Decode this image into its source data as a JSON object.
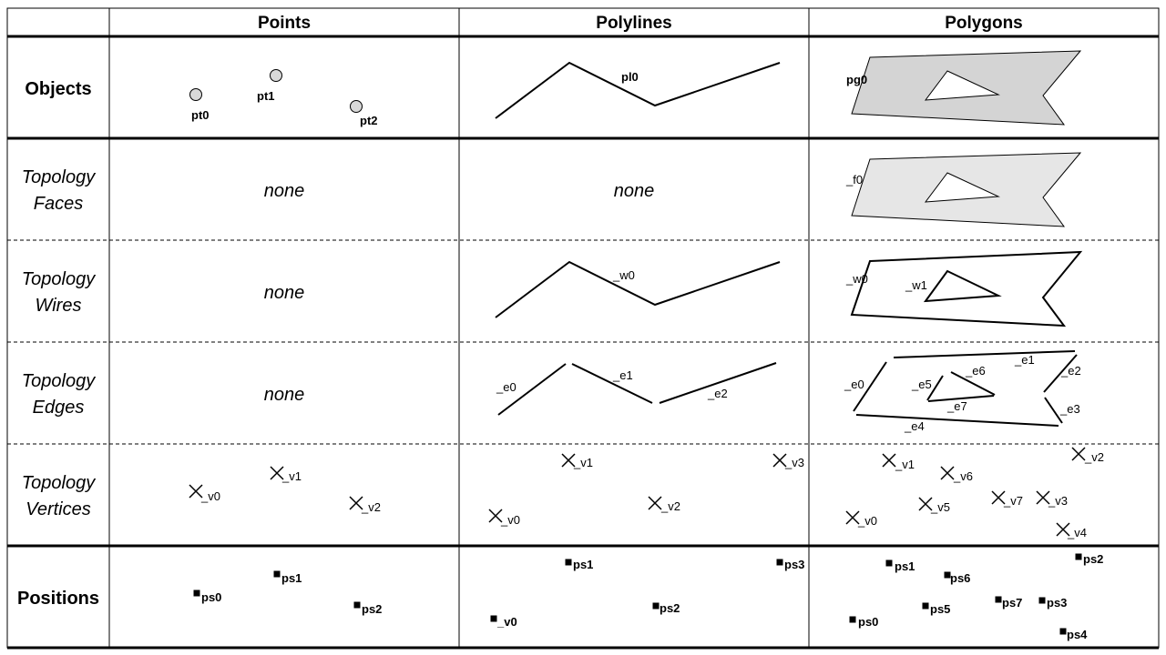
{
  "headers": {
    "points": "Points",
    "polylines": "Polylines",
    "polygons": "Polygons"
  },
  "rows": {
    "objects": "Objects",
    "faces": [
      "Topology",
      "Faces"
    ],
    "wires": [
      "Topology",
      "Wires"
    ],
    "edges": [
      "Topology",
      "Edges"
    ],
    "vertices": [
      "Topology",
      "Vertices"
    ],
    "positions": "Positions"
  },
  "none_label": "none",
  "objects": {
    "points": [
      "pt0",
      "pt1",
      "pt2"
    ],
    "polyline": "pl0",
    "polygon": "pg0"
  },
  "faces": {
    "polygon": "_f0"
  },
  "wires": {
    "polyline": "_w0",
    "polygon": [
      "_w0",
      "_w1"
    ]
  },
  "edges": {
    "polyline": [
      "_e0",
      "_e1",
      "_e2"
    ],
    "polygon": [
      "_e0",
      "_e1",
      "_e2",
      "_e3",
      "_e4",
      "_e5",
      "_e6",
      "_e7"
    ]
  },
  "vertices": {
    "points": [
      "_v0",
      "_v1",
      "_v2"
    ],
    "polyline": [
      "_v0",
      "_v1",
      "_v2",
      "_v3"
    ],
    "polygon": [
      "_v0",
      "_v1",
      "_v2",
      "_v3",
      "_v4",
      "_v5",
      "_v6",
      "_v7"
    ]
  },
  "positions": {
    "points": [
      "ps0",
      "ps1",
      "ps2"
    ],
    "polyline": [
      "_v0",
      "ps1",
      "ps2",
      "ps3"
    ],
    "polygon": [
      "ps0",
      "ps1",
      "ps2",
      "ps3",
      "ps4",
      "ps5",
      "ps6",
      "ps7"
    ]
  },
  "colors": {
    "object_fill": "#d4d4d4",
    "face_fill": "#e6e6e6",
    "point_fill": "#d9d9d9"
  }
}
